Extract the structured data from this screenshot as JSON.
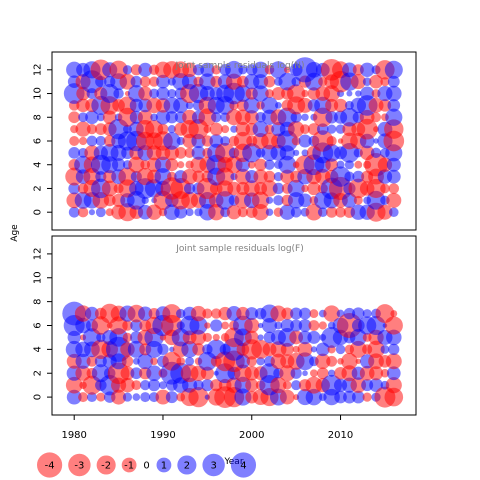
{
  "chart_data": {
    "type": "scatter",
    "subtype": "bubble-residuals",
    "xlabel": "Year",
    "ylabel": "Age",
    "x_ticks": [
      1980,
      1990,
      2000,
      2010
    ],
    "xlim": [
      1977.5,
      2018.5
    ],
    "colors": {
      "positive": "#FF0000",
      "negative": "#0000FF",
      "fill_alpha": 0.5
    },
    "panels": [
      {
        "title": "Joint sample residuals log(N)",
        "ylim": [
          -1.5,
          13.5
        ],
        "y_ticks": [
          0,
          2,
          4,
          6,
          8,
          10,
          12
        ],
        "years": [
          1980,
          2016
        ],
        "ages": [
          0,
          12
        ]
      },
      {
        "title": "Joint sample residuals log(F)",
        "ylim": [
          -1.5,
          13.5
        ],
        "y_ticks": [
          0,
          2,
          4,
          6,
          8,
          10,
          12
        ],
        "years": [
          1980,
          2016
        ],
        "ages": [
          0,
          7
        ]
      }
    ],
    "legend": {
      "position": "bottom-left",
      "values": [
        -4,
        -3,
        -2,
        -1,
        0,
        1,
        2,
        3,
        4
      ],
      "labels": [
        "-4",
        "-3",
        "-2",
        "-1",
        "0",
        "1",
        "2",
        "3",
        "4"
      ]
    }
  }
}
